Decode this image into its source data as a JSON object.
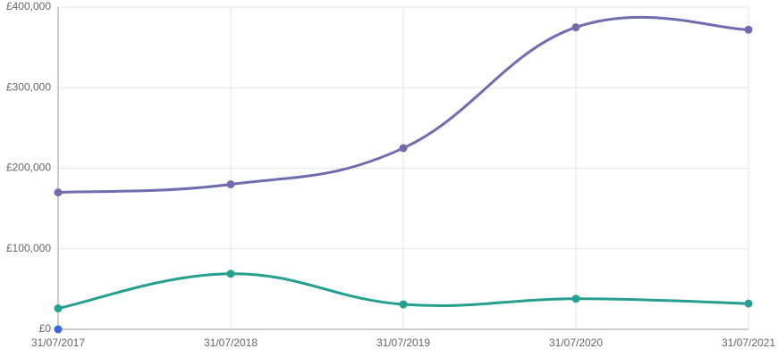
{
  "chart_data": {
    "type": "line",
    "categories": [
      "31/07/2017",
      "31/07/2018",
      "31/07/2019",
      "31/07/2020",
      "31/07/2021"
    ],
    "series": [
      {
        "color": "#6f6cb0",
        "values": [
          170000,
          180000,
          225000,
          375000,
          372000
        ]
      },
      {
        "color": "#26a08e",
        "values": [
          26000,
          69000,
          31000,
          38000,
          32000
        ]
      },
      {
        "color": "#3a66d6",
        "values": [
          0,
          null,
          null,
          null,
          null
        ]
      }
    ],
    "ylim": [
      0,
      400000
    ],
    "yticks": [
      {
        "value": 0,
        "label": "£0"
      },
      {
        "value": 100000,
        "label": "£100,000"
      },
      {
        "value": 200000,
        "label": "£200,000"
      },
      {
        "value": 300000,
        "label": "£300,000"
      },
      {
        "value": 400000,
        "label": "£400,000"
      }
    ],
    "grid": true
  }
}
